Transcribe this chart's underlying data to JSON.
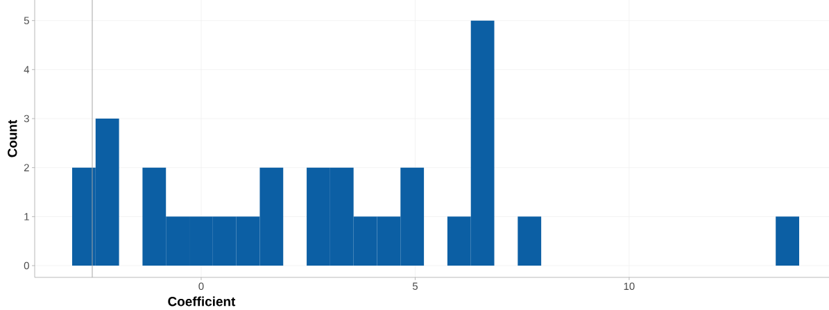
{
  "chart_data": {
    "type": "histogram",
    "xlabel": "Coefficient",
    "ylabel": "Count",
    "bins": [
      -3.015,
      -2.467,
      -1.919,
      -1.371,
      -0.823,
      -0.275,
      0.273,
      0.821,
      1.369,
      1.917,
      2.465,
      3.013,
      3.561,
      4.109,
      4.657,
      5.205,
      5.753,
      6.301,
      6.849,
      7.397,
      7.945,
      8.493,
      9.041,
      9.589,
      10.137,
      10.685,
      11.233,
      11.781,
      12.329,
      12.877,
      13.425,
      13.973
    ],
    "values": [
      2,
      3,
      0,
      2,
      1,
      1,
      1,
      1,
      2,
      0,
      2,
      2,
      1,
      1,
      2,
      0,
      1,
      5,
      0,
      1,
      0,
      0,
      0,
      0,
      0,
      0,
      0,
      0,
      0,
      0,
      1
    ],
    "color": "#0c5fa4",
    "xlim": [
      -3.89,
      14.67
    ],
    "ylim": [
      -0.24,
      5.42
    ],
    "xticks": [
      0,
      5,
      10
    ],
    "yticks": [
      0,
      1,
      2,
      3,
      4,
      5
    ],
    "grid": true,
    "ref_lines": [
      {
        "axis": "x",
        "value": -2.545,
        "color": "#a6a6a6"
      }
    ]
  }
}
